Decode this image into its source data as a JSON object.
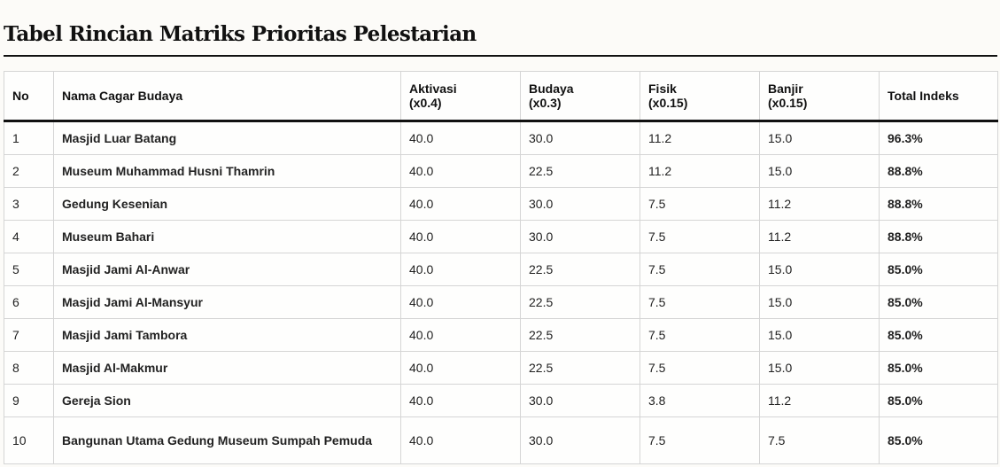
{
  "page": {
    "title": "Tabel Rincian Matriks Prioritas Pelestarian"
  },
  "table": {
    "headers": {
      "no": "No",
      "name": "Nama Cagar Budaya",
      "aktivasi": [
        "Aktivasi",
        "(x0.4)"
      ],
      "budaya": [
        "Budaya",
        "(x0.3)"
      ],
      "fisik": [
        "Fisik",
        "(x0.15)"
      ],
      "banjir": [
        "Banjir",
        "(x0.15)"
      ],
      "total": "Total Indeks"
    },
    "rows": [
      {
        "no": "1",
        "name": "Masjid Luar Batang",
        "aktivasi": "40.0",
        "budaya": "30.0",
        "fisik": "11.2",
        "banjir": "15.0",
        "total": "96.3%"
      },
      {
        "no": "2",
        "name": "Museum Muhammad Husni Thamrin",
        "aktivasi": "40.0",
        "budaya": "22.5",
        "fisik": "11.2",
        "banjir": "15.0",
        "total": "88.8%"
      },
      {
        "no": "3",
        "name": "Gedung Kesenian",
        "aktivasi": "40.0",
        "budaya": "30.0",
        "fisik": "7.5",
        "banjir": "11.2",
        "total": "88.8%"
      },
      {
        "no": "4",
        "name": "Museum Bahari",
        "aktivasi": "40.0",
        "budaya": "30.0",
        "fisik": "7.5",
        "banjir": "11.2",
        "total": "88.8%"
      },
      {
        "no": "5",
        "name": "Masjid Jami Al-Anwar",
        "aktivasi": "40.0",
        "budaya": "22.5",
        "fisik": "7.5",
        "banjir": "15.0",
        "total": "85.0%"
      },
      {
        "no": "6",
        "name": "Masjid Jami Al-Mansyur",
        "aktivasi": "40.0",
        "budaya": "22.5",
        "fisik": "7.5",
        "banjir": "15.0",
        "total": "85.0%"
      },
      {
        "no": "7",
        "name": "Masjid Jami Tambora",
        "aktivasi": "40.0",
        "budaya": "22.5",
        "fisik": "7.5",
        "banjir": "15.0",
        "total": "85.0%"
      },
      {
        "no": "8",
        "name": "Masjid Al-Makmur",
        "aktivasi": "40.0",
        "budaya": "22.5",
        "fisik": "7.5",
        "banjir": "15.0",
        "total": "85.0%"
      },
      {
        "no": "9",
        "name": "Gereja Sion",
        "aktivasi": "40.0",
        "budaya": "30.0",
        "fisik": "3.8",
        "banjir": "11.2",
        "total": "85.0%"
      },
      {
        "no": "10",
        "name": "Bangunan Utama Gedung Museum Sumpah Pemuda",
        "aktivasi": "40.0",
        "budaya": "30.0",
        "fisik": "7.5",
        "banjir": "7.5",
        "total": "85.0%"
      }
    ]
  }
}
